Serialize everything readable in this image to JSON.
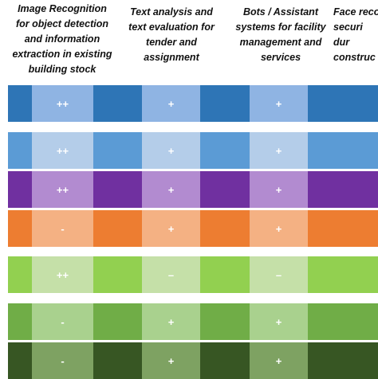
{
  "headers": [
    "Image Recognition\nfor object detection\nand information\nextraction in existing\nbuilding stock",
    "Text analysis and\ntext evaluation for\ntender and\nassignment",
    "Bots / Assistant\nsystems for facility\nmanagement and\nservices",
    "Face reco\nsecuri\ndur\nconstruc"
  ],
  "rows": [
    {
      "dark": "#2e75b6",
      "light": "#8fb4e3",
      "marks": [
        "++",
        "+",
        "+"
      ]
    },
    {
      "dark": "#5b9bd5",
      "light": "#b4cde9",
      "marks": [
        "++",
        "+",
        "+"
      ]
    },
    {
      "dark": "#7030a0",
      "light": "#b28bd0",
      "marks": [
        "++",
        "+",
        "+"
      ]
    },
    {
      "dark": "#ed7d31",
      "light": "#f4b183",
      "marks": [
        "-",
        "+",
        "+"
      ]
    },
    {
      "dark": "#92d050",
      "light": "#c5e0a8",
      "marks": [
        "++",
        "–",
        "–"
      ]
    },
    {
      "dark": "#70ad47",
      "light": "#a9d18e",
      "marks": [
        "-",
        "+",
        "+"
      ]
    },
    {
      "dark": "#375623",
      "light": "#7ea262",
      "marks": [
        "-",
        "+",
        "+"
      ]
    }
  ]
}
